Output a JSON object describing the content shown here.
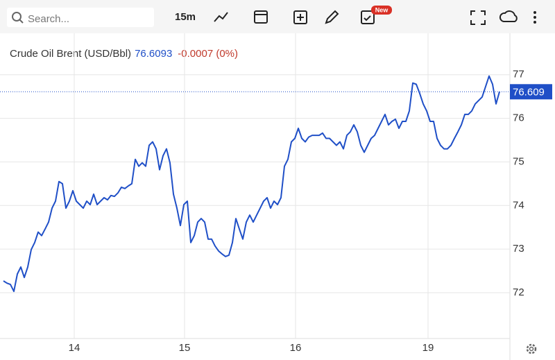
{
  "toolbar": {
    "search_placeholder": "Search...",
    "interval": "15m",
    "badge": "New"
  },
  "chart_data": {
    "type": "line",
    "title": "Crude Oil Brent (USD/Bbl)",
    "price": "76.6093",
    "change": "-0.0007 (0%)",
    "series": [
      {
        "name": "Crude Oil Brent",
        "color": "#1f4fc7",
        "values": [
          72.27,
          72.22,
          72.19,
          72.03,
          72.43,
          72.59,
          72.35,
          72.59,
          72.99,
          73.15,
          73.39,
          73.31,
          73.46,
          73.62,
          73.94,
          74.1,
          74.55,
          74.5,
          73.94,
          74.1,
          74.34,
          74.1,
          74.02,
          73.94,
          74.1,
          74.02,
          74.26,
          74.02,
          74.1,
          74.18,
          74.13,
          74.23,
          74.21,
          74.29,
          74.42,
          74.39,
          74.45,
          74.5,
          75.06,
          74.9,
          74.98,
          74.9,
          75.38,
          75.46,
          75.3,
          74.82,
          75.14,
          75.3,
          74.98,
          74.26,
          73.94,
          73.54,
          74.02,
          74.1,
          73.15,
          73.31,
          73.62,
          73.7,
          73.62,
          73.23,
          73.23,
          73.07,
          72.96,
          72.89,
          72.83,
          72.86,
          73.15,
          73.7,
          73.46,
          73.23,
          73.62,
          73.78,
          73.62,
          73.78,
          73.94,
          74.1,
          74.18,
          73.94,
          74.1,
          74.02,
          74.18,
          74.9,
          75.06,
          75.46,
          75.54,
          75.77,
          75.54,
          75.46,
          75.57,
          75.61,
          75.61,
          75.61,
          75.66,
          75.54,
          75.54,
          75.46,
          75.38,
          75.46,
          75.3,
          75.61,
          75.69,
          75.85,
          75.69,
          75.38,
          75.22,
          75.38,
          75.54,
          75.61,
          75.77,
          75.93,
          76.09,
          75.85,
          75.93,
          75.98,
          75.77,
          75.93,
          75.93,
          76.17,
          76.81,
          76.78,
          76.57,
          76.33,
          76.17,
          75.93,
          75.93,
          75.54,
          75.38,
          75.3,
          75.3,
          75.38,
          75.54,
          75.69,
          75.85,
          76.09,
          76.09,
          76.17,
          76.33,
          76.41,
          76.49,
          76.73,
          76.97,
          76.78,
          76.33,
          76.61
        ]
      }
    ],
    "last_value": 76.609,
    "last_value_label": "76.609",
    "xlim": [
      0,
      146
    ],
    "xticks": [
      {
        "value": 20.4,
        "label": "14"
      },
      {
        "value": 52.2,
        "label": "15"
      },
      {
        "value": 84.2,
        "label": "16"
      },
      {
        "value": 122.4,
        "label": "19"
      }
    ],
    "ylim": [
      70.95,
      77.95
    ],
    "yticks": [
      72,
      73,
      74,
      75,
      76,
      77
    ],
    "grid": true
  }
}
